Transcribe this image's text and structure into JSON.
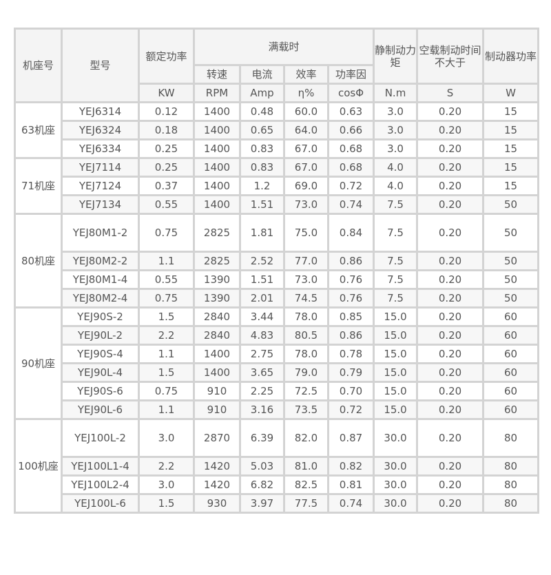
{
  "headers": {
    "frame": "机座号",
    "model": "型号",
    "rated_power": "额定功率",
    "full_load": "满载时",
    "speed": "转速",
    "current": "电流",
    "efficiency": "效率",
    "power_factor": "功率因",
    "static_torque": "静制动力矩",
    "brake_time": "空载制动时间不大于",
    "brake_power": "制动器功率",
    "units": [
      "KW",
      "RPM",
      "Amp",
      "η%",
      "cosΦ",
      "N.m",
      "S",
      "W"
    ]
  },
  "groups": [
    {
      "frame": "63机座",
      "rows": [
        [
          "YEJ6314",
          "0.12",
          "1400",
          "0.48",
          "60.0",
          "0.63",
          "3.0",
          "0.20",
          "15"
        ],
        [
          "YEJ6324",
          "0.18",
          "1400",
          "0.65",
          "64.0",
          "0.66",
          "3.0",
          "0.20",
          "15"
        ],
        [
          "YEJ6334",
          "0.25",
          "1400",
          "0.83",
          "67.0",
          "0.68",
          "3.0",
          "0.20",
          "15"
        ]
      ]
    },
    {
      "frame": "71机座",
      "rows": [
        [
          "YEJ7114",
          "0.25",
          "1400",
          "0.83",
          "67.0",
          "0.68",
          "4.0",
          "0.20",
          "15"
        ],
        [
          "YEJ7124",
          "0.37",
          "1400",
          "1.2",
          "69.0",
          "0.72",
          "4.0",
          "0.20",
          "15"
        ],
        [
          "YEJ7134",
          "0.55",
          "1400",
          "1.51",
          "73.0",
          "0.74",
          "7.5",
          "0.20",
          "50"
        ]
      ]
    },
    {
      "frame": "80机座",
      "rows": [
        [
          "YEJ80M1-2",
          "0.75",
          "2825",
          "1.81",
          "75.0",
          "0.84",
          "7.5",
          "0.20",
          "50"
        ],
        [
          "YEJ80M2-2",
          "1.1",
          "2825",
          "2.52",
          "77.0",
          "0.86",
          "7.5",
          "0.20",
          "50"
        ],
        [
          "YEJ80M1-4",
          "0.55",
          "1390",
          "1.51",
          "73.0",
          "0.76",
          "7.5",
          "0.20",
          "50"
        ],
        [
          "YEJ80M2-4",
          "0.75",
          "1390",
          "2.01",
          "74.5",
          "0.76",
          "7.5",
          "0.20",
          "50"
        ]
      ]
    },
    {
      "frame": "90机座",
      "rows": [
        [
          "YEJ90S-2",
          "1.5",
          "2840",
          "3.44",
          "78.0",
          "0.85",
          "15.0",
          "0.20",
          "60"
        ],
        [
          "YEJ90L-2",
          "2.2",
          "2840",
          "4.83",
          "80.5",
          "0.86",
          "15.0",
          "0.20",
          "60"
        ],
        [
          "YEJ90S-4",
          "1.1",
          "1400",
          "2.75",
          "78.0",
          "0.78",
          "15.0",
          "0.20",
          "60"
        ],
        [
          "YEJ90L-4",
          "1.5",
          "1400",
          "3.65",
          "79.0",
          "0.79",
          "15.0",
          "0.20",
          "60"
        ],
        [
          "YEJ90S-6",
          "0.75",
          "910",
          "2.25",
          "72.5",
          "0.70",
          "15.0",
          "0.20",
          "60"
        ],
        [
          "YEJ90L-6",
          "1.1",
          "910",
          "3.16",
          "73.5",
          "0.72",
          "15.0",
          "0.20",
          "60"
        ]
      ]
    },
    {
      "frame": "100机座",
      "rows": [
        [
          "YEJ100L-2",
          "3.0",
          "2870",
          "6.39",
          "82.0",
          "0.87",
          "30.0",
          "0.20",
          "80"
        ],
        [
          "YEJ100L1-4",
          "2.2",
          "1420",
          "5.03",
          "81.0",
          "0.82",
          "30.0",
          "0.20",
          "80"
        ],
        [
          "YEJ100L2-4",
          "3.0",
          "1420",
          "6.82",
          "82.5",
          "0.81",
          "30.0",
          "0.20",
          "80"
        ],
        [
          "YEJ100L-6",
          "1.5",
          "930",
          "3.97",
          "77.5",
          "0.74",
          "30.0",
          "0.20",
          "80"
        ]
      ]
    }
  ]
}
